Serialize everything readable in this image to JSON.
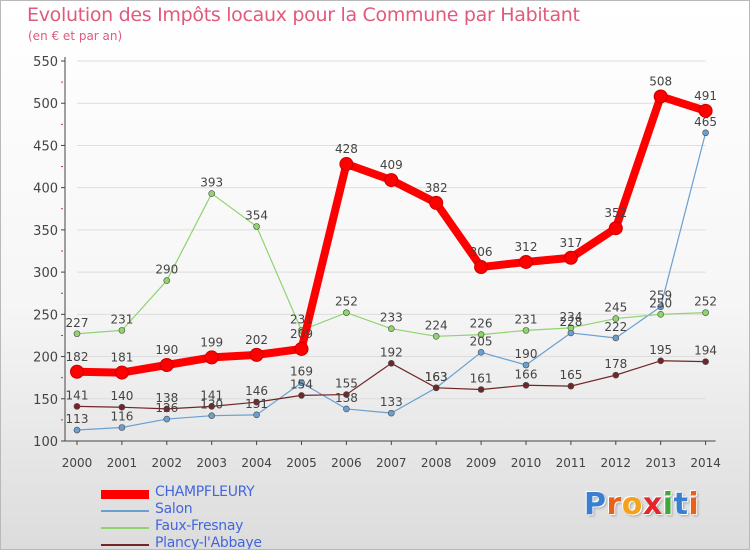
{
  "header": {
    "title": "Evolution des Impôts locaux pour la Commune par Habitant",
    "subtitle": "(en € et par an)"
  },
  "logo": {
    "text": "Proxiti",
    "letter_colors": [
      "#3a7fd1",
      "#e8611a",
      "#f4a21a",
      "#e3262b",
      "#43a63a",
      "#3a7fd1",
      "#e8611a"
    ]
  },
  "colors": {
    "title": "#e05a7d",
    "legend_text": "#4466dd",
    "axis": "#444444",
    "gridline": "#dddddd"
  },
  "chart_data": {
    "type": "line",
    "title": "Evolution des Impôts locaux pour la Commune par Habitant",
    "subtitle": "(en € et par an)",
    "xlabel": "",
    "ylabel": "",
    "x": [
      "2000",
      "2001",
      "2002",
      "2003",
      "2004",
      "2005",
      "2006",
      "2007",
      "2008",
      "2009",
      "2010",
      "2011",
      "2012",
      "2013",
      "2014"
    ],
    "ylim": [
      100,
      550
    ],
    "yticks": [
      100,
      150,
      200,
      250,
      300,
      350,
      400,
      450,
      500,
      550
    ],
    "grid": true,
    "legend_position": "bottom-left",
    "series": [
      {
        "name": "CHAMPFLEURY",
        "color": "#ff0000",
        "values": [
          182,
          181,
          190,
          199,
          202,
          209,
          428,
          409,
          382,
          306,
          312,
          317,
          352,
          508,
          491
        ]
      },
      {
        "name": "Salon",
        "color": "#6a9fd0",
        "values": [
          113,
          116,
          126,
          130,
          131,
          169,
          138,
          133,
          163,
          205,
          190,
          228,
          222,
          259,
          465
        ]
      },
      {
        "name": "Faux-Fresnay",
        "color": "#8fd46e",
        "values": [
          227,
          231,
          290,
          393,
          354,
          231,
          252,
          233,
          224,
          226,
          231,
          234,
          245,
          250,
          252
        ]
      },
      {
        "name": "Plancy-l'Abbaye",
        "color": "#722628",
        "values": [
          141,
          140,
          138,
          141,
          146,
          154,
          155,
          192,
          163,
          161,
          166,
          165,
          178,
          195,
          194
        ]
      }
    ]
  }
}
